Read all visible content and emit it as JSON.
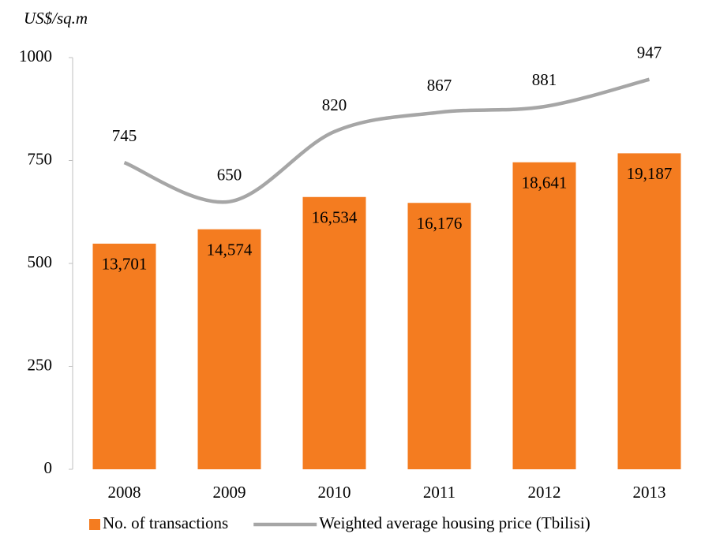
{
  "chart_data": {
    "type": "bar-line",
    "ylabel": "US$/sq.m",
    "categories": [
      "2008",
      "2009",
      "2010",
      "2011",
      "2012",
      "2013"
    ],
    "ylim": [
      0,
      1000
    ],
    "yticks": [
      0,
      250,
      500,
      750,
      1000
    ],
    "y2lim": [
      0,
      25000
    ],
    "series": [
      {
        "name": "No. of transactions",
        "type": "bar",
        "axis": "y2",
        "color": "#f47c20",
        "values": [
          13701,
          14574,
          16534,
          16176,
          18641,
          19187
        ],
        "value_labels": [
          "13,701",
          "14,574",
          "16,534",
          "16,176",
          "18,641",
          "19,187"
        ]
      },
      {
        "name": "Weighted average housing price (Tbilisi)",
        "type": "line",
        "color": "#a6a6a6",
        "values": [
          745,
          650,
          820,
          867,
          881,
          947
        ]
      }
    ],
    "legend": "bottom"
  }
}
